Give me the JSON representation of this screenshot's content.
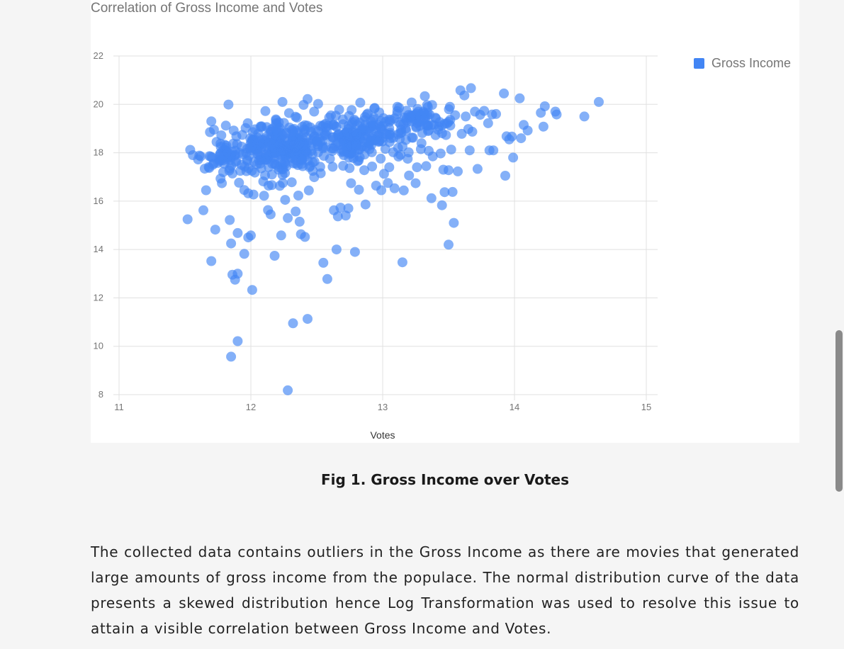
{
  "colors": {
    "series": "#4285f4",
    "grid": "#e0e0e0",
    "text_muted": "#757575"
  },
  "chart_data": {
    "type": "scatter",
    "title": "Correlation of Gross Income and Votes",
    "xlabel": "Votes",
    "ylabel": "",
    "xlim": [
      11,
      15
    ],
    "ylim": [
      8,
      22
    ],
    "xticks": [
      "11",
      "12",
      "13",
      "14",
      "15"
    ],
    "yticks": [
      "8",
      "10",
      "12",
      "14",
      "16",
      "18",
      "20",
      "22"
    ],
    "grid": true,
    "legend_position": "top-right",
    "series": [
      {
        "name": "Gross Income",
        "points": [
          [
            11.52,
            15.25
          ],
          [
            11.54,
            18.12
          ],
          [
            11.56,
            17.9
          ],
          [
            11.6,
            17.72
          ],
          [
            11.62,
            17.85
          ],
          [
            11.64,
            15.62
          ],
          [
            11.65,
            17.34
          ],
          [
            11.66,
            16.45
          ],
          [
            11.68,
            17.41
          ],
          [
            11.69,
            18.85
          ],
          [
            11.7,
            19.3
          ],
          [
            11.7,
            13.52
          ],
          [
            11.72,
            18.95
          ],
          [
            11.73,
            14.82
          ],
          [
            11.74,
            18.45
          ],
          [
            11.75,
            17.58
          ],
          [
            11.76,
            17.85
          ],
          [
            11.77,
            16.93
          ],
          [
            11.78,
            16.74
          ],
          [
            11.79,
            17.2
          ],
          [
            11.8,
            18.33
          ],
          [
            11.81,
            19.12
          ],
          [
            11.82,
            18.05
          ],
          [
            11.83,
            19.99
          ],
          [
            11.84,
            17.35
          ],
          [
            11.84,
            15.22
          ],
          [
            11.85,
            14.25
          ],
          [
            11.85,
            9.57
          ],
          [
            11.86,
            12.96
          ],
          [
            11.86,
            17.14
          ],
          [
            11.87,
            18.92
          ],
          [
            11.88,
            12.75
          ],
          [
            11.89,
            17.66
          ],
          [
            11.89,
            18.68
          ],
          [
            11.9,
            13.0
          ],
          [
            11.9,
            14.68
          ],
          [
            11.9,
            10.21
          ],
          [
            11.91,
            16.76
          ],
          [
            11.92,
            17.25
          ],
          [
            11.93,
            18.25
          ],
          [
            11.94,
            17.94
          ],
          [
            11.95,
            16.46
          ],
          [
            11.95,
            13.82
          ],
          [
            11.96,
            19.02
          ],
          [
            11.97,
            17.72
          ],
          [
            11.98,
            14.5
          ],
          [
            11.98,
            16.32
          ],
          [
            12.0,
            18.1
          ],
          [
            12.0,
            14.58
          ],
          [
            12.01,
            12.33
          ],
          [
            12.02,
            16.27
          ],
          [
            12.03,
            17.18
          ],
          [
            12.05,
            18.62
          ],
          [
            12.07,
            17.55
          ],
          [
            12.08,
            19.06
          ],
          [
            12.1,
            16.22
          ],
          [
            12.11,
            19.72
          ],
          [
            12.12,
            17.92
          ],
          [
            12.13,
            15.63
          ],
          [
            12.14,
            18.42
          ],
          [
            12.15,
            15.45
          ],
          [
            12.16,
            17.1
          ],
          [
            12.18,
            13.74
          ],
          [
            12.19,
            19.38
          ],
          [
            12.2,
            18.83
          ],
          [
            12.21,
            17.3
          ],
          [
            12.22,
            16.63
          ],
          [
            12.23,
            14.58
          ],
          [
            12.24,
            20.1
          ],
          [
            12.25,
            18.1
          ],
          [
            12.26,
            16.05
          ],
          [
            12.27,
            17.44
          ],
          [
            12.28,
            8.18
          ],
          [
            12.28,
            15.3
          ],
          [
            12.29,
            19.64
          ],
          [
            12.3,
            18.35
          ],
          [
            12.31,
            16.78
          ],
          [
            12.32,
            10.95
          ],
          [
            12.33,
            17.96
          ],
          [
            12.34,
            15.57
          ],
          [
            12.35,
            19.45
          ],
          [
            12.36,
            16.23
          ],
          [
            12.37,
            15.15
          ],
          [
            12.38,
            14.63
          ],
          [
            12.39,
            17.68
          ],
          [
            12.4,
            19.98
          ],
          [
            12.41,
            14.52
          ],
          [
            12.42,
            18.64
          ],
          [
            12.43,
            20.22
          ],
          [
            12.43,
            11.13
          ],
          [
            12.44,
            16.44
          ],
          [
            12.46,
            18.08
          ],
          [
            12.47,
            17.25
          ],
          [
            12.48,
            19.7
          ],
          [
            12.5,
            18.44
          ],
          [
            12.51,
            20.02
          ],
          [
            12.53,
            17.15
          ],
          [
            12.55,
            13.45
          ],
          [
            12.56,
            18.78
          ],
          [
            12.58,
            12.78
          ],
          [
            12.6,
            17.75
          ],
          [
            12.62,
            19.15
          ],
          [
            12.63,
            15.62
          ],
          [
            12.65,
            14.0
          ],
          [
            12.66,
            15.37
          ],
          [
            12.67,
            19.78
          ],
          [
            12.68,
            15.73
          ],
          [
            12.69,
            18.12
          ],
          [
            12.7,
            17.46
          ],
          [
            12.72,
            15.4
          ],
          [
            12.73,
            18.86
          ],
          [
            12.74,
            15.7
          ],
          [
            12.76,
            16.74
          ],
          [
            12.77,
            19.25
          ],
          [
            12.79,
            13.9
          ],
          [
            12.8,
            18.3
          ],
          [
            12.81,
            17.65
          ],
          [
            12.82,
            16.47
          ],
          [
            12.83,
            20.07
          ],
          [
            12.84,
            18.95
          ],
          [
            12.86,
            17.28
          ],
          [
            12.87,
            15.86
          ],
          [
            12.88,
            19.58
          ],
          [
            12.9,
            18.15
          ],
          [
            12.92,
            17.43
          ],
          [
            12.94,
            19.85
          ],
          [
            12.95,
            16.64
          ],
          [
            12.97,
            18.45
          ],
          [
            12.99,
            16.45
          ],
          [
            13.0,
            19.1
          ],
          [
            13.01,
            17.13
          ],
          [
            13.03,
            18.76
          ],
          [
            13.04,
            16.75
          ],
          [
            13.05,
            17.4
          ],
          [
            13.06,
            19.35
          ],
          [
            13.08,
            18.02
          ],
          [
            13.09,
            16.53
          ],
          [
            13.11,
            19.6
          ],
          [
            13.12,
            17.84
          ],
          [
            13.14,
            18.96
          ],
          [
            13.15,
            13.47
          ],
          [
            13.16,
            16.44
          ],
          [
            13.18,
            19.35
          ],
          [
            13.19,
            17.75
          ],
          [
            13.2,
            17.06
          ],
          [
            13.22,
            20.08
          ],
          [
            13.23,
            18.62
          ],
          [
            13.25,
            16.74
          ],
          [
            13.26,
            17.4
          ],
          [
            13.27,
            19.7
          ],
          [
            13.29,
            18.15
          ],
          [
            13.31,
            19.35
          ],
          [
            13.32,
            20.34
          ],
          [
            13.33,
            17.45
          ],
          [
            13.35,
            18.93
          ],
          [
            13.37,
            16.12
          ],
          [
            13.38,
            17.85
          ],
          [
            13.4,
            19.45
          ],
          [
            13.42,
            18.95
          ],
          [
            13.44,
            17.97
          ],
          [
            13.45,
            15.83
          ],
          [
            13.46,
            17.3
          ],
          [
            13.47,
            16.37
          ],
          [
            13.48,
            18.73
          ],
          [
            13.5,
            14.2
          ],
          [
            13.5,
            17.28
          ],
          [
            13.51,
            19.9
          ],
          [
            13.52,
            18.13
          ],
          [
            13.53,
            16.38
          ],
          [
            13.54,
            15.1
          ],
          [
            13.55,
            19.55
          ],
          [
            13.57,
            17.23
          ],
          [
            13.59,
            20.58
          ],
          [
            13.6,
            18.78
          ],
          [
            13.62,
            20.37
          ],
          [
            13.63,
            19.5
          ],
          [
            13.65,
            18.98
          ],
          [
            13.66,
            18.1
          ],
          [
            13.67,
            20.67
          ],
          [
            13.68,
            18.87
          ],
          [
            13.7,
            19.7
          ],
          [
            13.72,
            17.33
          ],
          [
            13.74,
            19.57
          ],
          [
            13.77,
            19.73
          ],
          [
            13.8,
            19.22
          ],
          [
            13.81,
            18.1
          ],
          [
            13.83,
            19.58
          ],
          [
            13.84,
            18.1
          ],
          [
            13.86,
            19.6
          ],
          [
            13.92,
            20.45
          ],
          [
            13.93,
            17.05
          ],
          [
            13.94,
            18.68
          ],
          [
            13.96,
            18.55
          ],
          [
            13.98,
            18.67
          ],
          [
            13.99,
            17.8
          ],
          [
            14.04,
            20.25
          ],
          [
            14.05,
            18.6
          ],
          [
            14.07,
            19.15
          ],
          [
            14.1,
            18.92
          ],
          [
            14.2,
            19.65
          ],
          [
            14.22,
            19.08
          ],
          [
            14.23,
            19.92
          ],
          [
            14.31,
            19.7
          ],
          [
            14.32,
            19.58
          ],
          [
            14.53,
            19.5
          ],
          [
            14.64,
            20.1
          ]
        ]
      }
    ]
  },
  "caption": "Fig 1. Gross Income over Votes",
  "paragraph": "The collected data contains outliers in the Gross Income as there are movies that generated large amounts of gross income from the populace. The normal distribution curve of the data presents a skewed distribution hence Log Transformation was used to resolve this issue to attain a visible correlation between Gross Income and Votes."
}
